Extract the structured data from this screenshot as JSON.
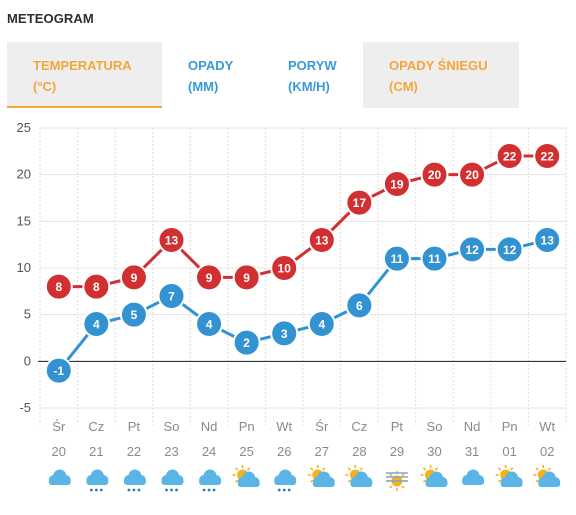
{
  "title": "METEOGRAM",
  "tabs": [
    {
      "line1": "TEMPERATURA",
      "line2": "(°C)"
    },
    {
      "line1": "OPADY",
      "line2": "(MM)"
    },
    {
      "line1": "PORYW",
      "line2": "(KM/H)"
    },
    {
      "line1": "OPADY ŚNIEGU",
      "line2": "(CM)"
    }
  ],
  "colors": {
    "accent_orange": "#f4a63b",
    "accent_blue": "#3a9ad9",
    "series_max": "#d22f30",
    "series_min": "#3292d2",
    "tab_grey": "#eeeeee"
  },
  "chart_data": {
    "type": "line",
    "ylim": [
      -5,
      25
    ],
    "yticks": [
      "25",
      "20",
      "15",
      "10",
      "5",
      "0",
      "-5"
    ],
    "categories": [
      "Śr",
      "Cz",
      "Pt",
      "So",
      "Nd",
      "Pn",
      "Wt",
      "Śr",
      "Cz",
      "Pt",
      "So",
      "Nd",
      "Pn",
      "Wt"
    ],
    "dates": [
      "20",
      "21",
      "22",
      "23",
      "24",
      "25",
      "26",
      "27",
      "28",
      "29",
      "30",
      "31",
      "01",
      "02"
    ],
    "series": [
      {
        "values": [
          8,
          8,
          9,
          13,
          9,
          9,
          10,
          13,
          17,
          19,
          20,
          20,
          22,
          22
        ],
        "color": "#d22f30"
      },
      {
        "values": [
          -1,
          4,
          5,
          7,
          4,
          2,
          3,
          4,
          6,
          11,
          11,
          12,
          12,
          13
        ],
        "color": "#3292d2"
      }
    ],
    "weather_icons": [
      "cloud-icon",
      "cloud-rain-icon",
      "cloud-rain-icon",
      "cloud-rain-icon",
      "cloud-rain-icon",
      "sun-cloud-icon",
      "cloud-rain-icon",
      "sun-cloud-icon",
      "sun-cloud-icon",
      "fog-sun-icon",
      "sun-cloud-icon",
      "cloud-icon",
      "sun-cloud-icon",
      "sun-cloud-icon"
    ]
  }
}
